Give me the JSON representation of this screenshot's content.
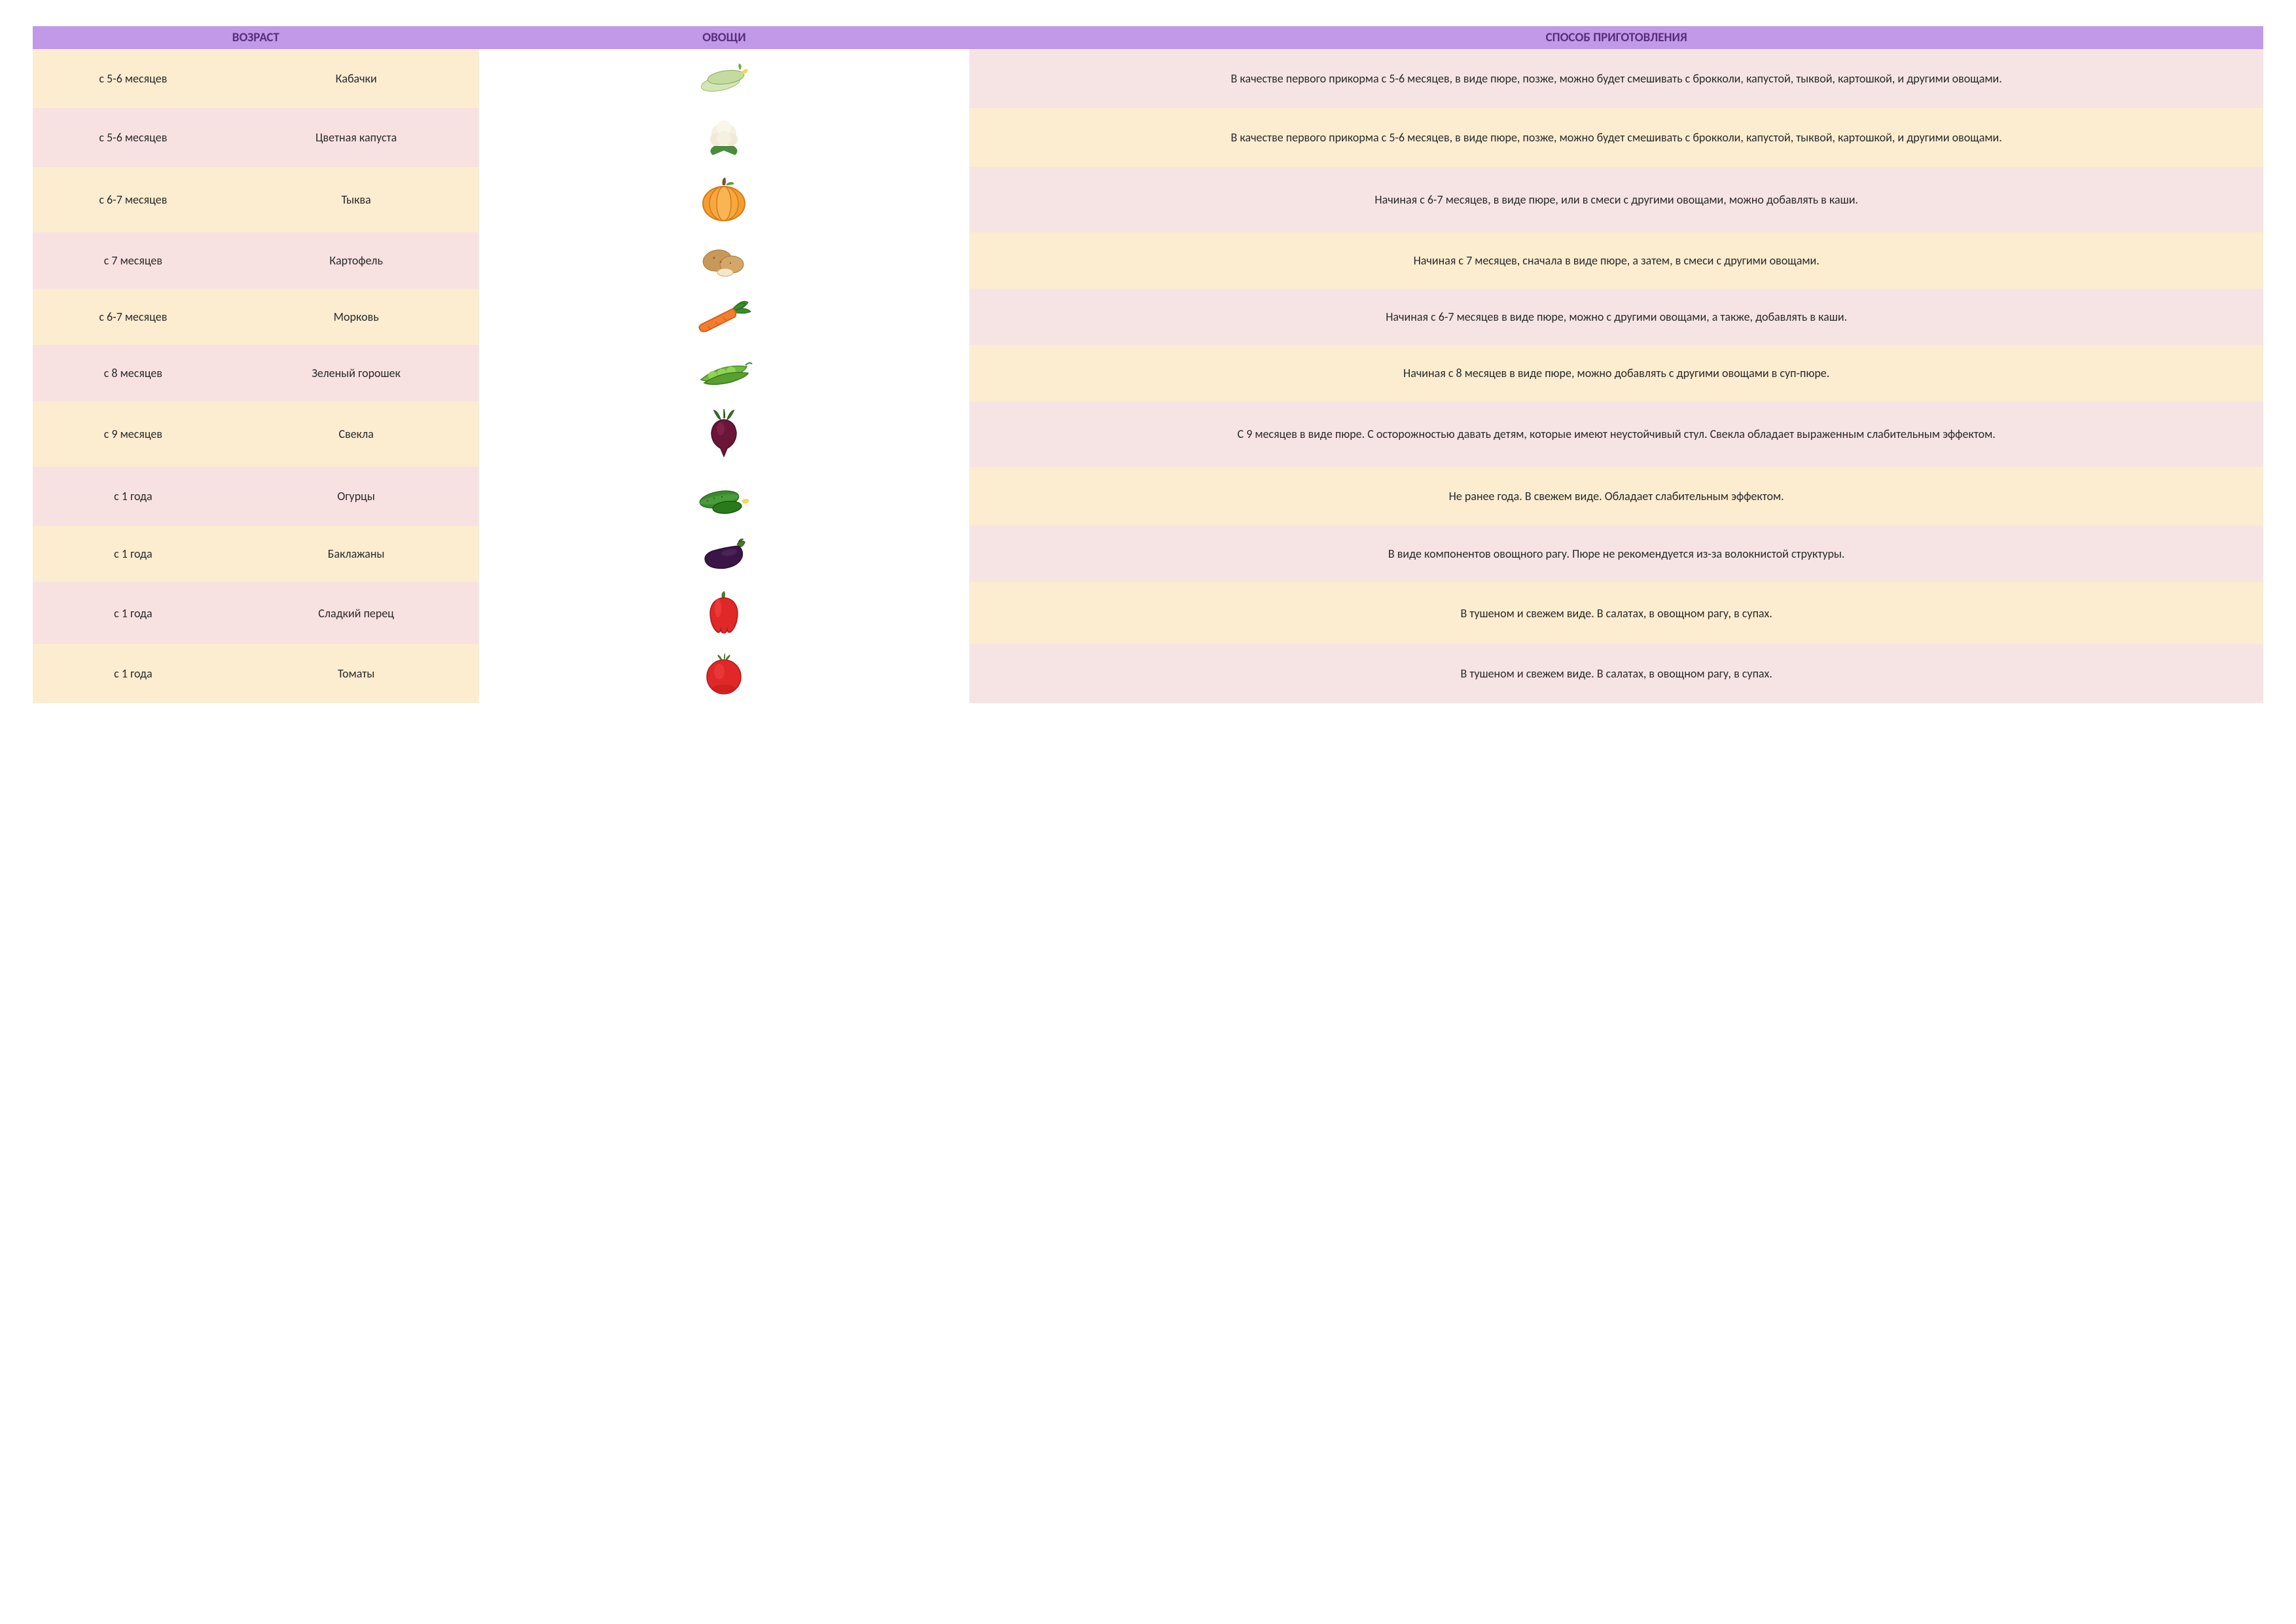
{
  "headers": {
    "age": "ВОЗРАСТ",
    "veg": "ОВОЩИ",
    "prep": "СПОСОБ ПРИГОТОВЛЕНИЯ"
  },
  "styling": {
    "header_bg": "#c299e8",
    "header_text": "#5a2d7a",
    "row_even_age": "#fcecd0",
    "row_even_prep": "#f6e4e4",
    "row_odd_age": "#f8e1e1",
    "row_odd_prep": "#fcecd0",
    "img_bg": "#ffffff",
    "font_size_header": 19,
    "font_size_body": 18
  },
  "rows": [
    {
      "age": "с 5-6 месяцев",
      "name": "Кабачки",
      "icon": "zucchini",
      "prep": "В качестве первого прикорма с 5-6 месяцев, в виде пюре, позже, можно будет смешивать с брокколи, капустой, тыквой, картошкой, и другими овощами."
    },
    {
      "age": "с 5-6 месяцев",
      "name": "Цветная капуста",
      "icon": "cauliflower",
      "prep": "В качестве первого прикорма с 5-6 месяцев, в виде пюре, позже, можно будет смешивать с брокколи, капустой, тыквой, картошкой, и другими овощами."
    },
    {
      "age": "с 6-7 месяцев",
      "name": "Тыква",
      "icon": "pumpkin",
      "prep": "Начиная с 6-7 месяцев, в виде пюре, или в смеси с другими овощами, можно добавлять в каши."
    },
    {
      "age": "с 7 месяцев",
      "name": "Картофель",
      "icon": "potato",
      "prep": "Начиная с 7 месяцев, сначала в виде пюре, а затем, в смеси с другими овощами."
    },
    {
      "age": "с 6-7 месяцев",
      "name": "Морковь",
      "icon": "carrot",
      "prep": "Начиная с 6-7 месяцев в виде пюре, можно с другими овощами, а также, добавлять в каши."
    },
    {
      "age": "с 8 месяцев",
      "name": "Зеленый горошек",
      "icon": "peas",
      "prep": "Начиная с 8 месяцев в виде пюре, можно добавлять с другими овощами в суп-пюре."
    },
    {
      "age": "с 9 месяцев",
      "name": "Свекла",
      "icon": "beet",
      "prep": "С 9 месяцев в виде пюре. С осторожностью давать детям, которые имеют неустойчивый стул. Свекла обладает выраженным слабительным эффектом."
    },
    {
      "age": "с 1 года",
      "name": "Огурцы",
      "icon": "cucumber",
      "prep": "Не ранее года. В свежем виде. Обладает слабительным эффектом."
    },
    {
      "age": "с 1 года",
      "name": "Баклажаны",
      "icon": "eggplant",
      "prep": "В виде компонентов овощного рагу. Пюре не рекомендуется из-за волокнистой структуры."
    },
    {
      "age": "с 1 года",
      "name": "Сладкий перец",
      "icon": "pepper",
      "prep": "В тушеном и свежем виде. В салатах, в овощном рагу, в супах."
    },
    {
      "age": "с 1 года",
      "name": "Томаты",
      "icon": "tomato",
      "prep": "В тушеном и свежем виде. В салатах, в овощном рагу, в супах."
    }
  ]
}
